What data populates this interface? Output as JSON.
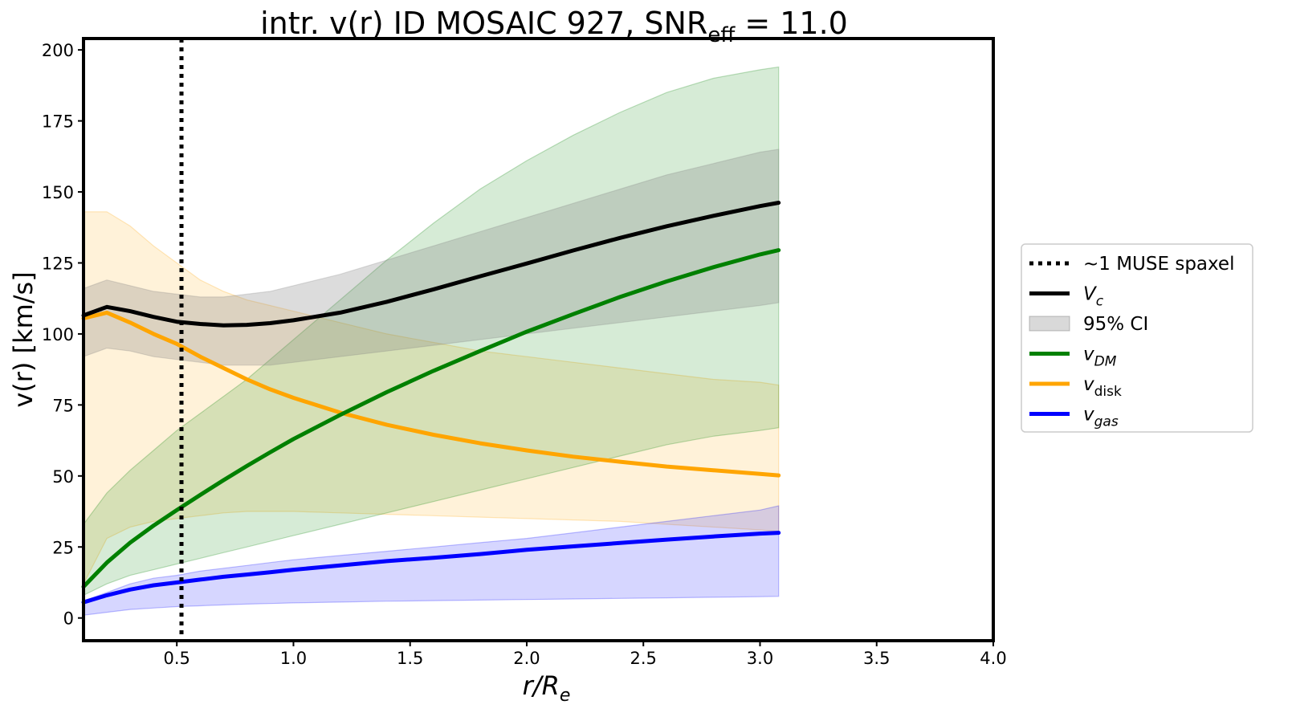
{
  "chart_data": {
    "type": "line",
    "title": {
      "prefix": "intr. v(r) ID MOSAIC 927, SNR",
      "sub": "eff",
      "suffix": " = 11.0"
    },
    "xlabel": {
      "main": "r/R",
      "sub": "e"
    },
    "ylabel": "v(r) [km/s]",
    "xlim": [
      0.1,
      4.0
    ],
    "ylim": [
      -8,
      204
    ],
    "xticks": [
      0.5,
      1.0,
      1.5,
      2.0,
      2.5,
      3.0,
      3.5,
      4.0
    ],
    "xtick_labels": [
      "0.5",
      "1.0",
      "1.5",
      "2.0",
      "2.5",
      "3.0",
      "3.5",
      "4.0"
    ],
    "yticks": [
      0,
      25,
      50,
      75,
      100,
      125,
      150,
      175,
      200
    ],
    "ytick_labels": [
      "0",
      "25",
      "50",
      "75",
      "100",
      "125",
      "150",
      "175",
      "200"
    ],
    "vline": {
      "x": 0.52,
      "label": "~1 MUSE spaxel",
      "color": "#000000"
    },
    "x": [
      0.1,
      0.2,
      0.3,
      0.4,
      0.5,
      0.6,
      0.7,
      0.8,
      0.9,
      1.0,
      1.2,
      1.4,
      1.6,
      1.8,
      2.0,
      2.2,
      2.4,
      2.6,
      2.8,
      3.0,
      3.08
    ],
    "bands": [
      {
        "name": "disk-band",
        "color": "#ffa500",
        "opacity": 0.15,
        "lower": [
          12,
          28,
          32,
          34,
          35,
          36,
          37,
          37.5,
          37.5,
          37.5,
          37,
          36.5,
          36,
          35.5,
          35,
          34.5,
          34,
          33,
          32,
          31,
          30.5
        ],
        "upper": [
          143,
          143,
          138,
          131,
          125,
          119,
          115,
          112,
          110,
          108,
          104,
          100,
          97,
          94,
          92,
          90,
          88,
          86,
          84,
          83,
          82
        ]
      },
      {
        "name": "dm-band",
        "color": "#008000",
        "opacity": 0.16,
        "lower": [
          8,
          12,
          15,
          17,
          19,
          21,
          23,
          25,
          27,
          29,
          33,
          37,
          41,
          45,
          49,
          53,
          57,
          61,
          64,
          66,
          67
        ],
        "upper": [
          33,
          44,
          52,
          59,
          66,
          72,
          78,
          84,
          91,
          98,
          112,
          126,
          139,
          151,
          161,
          170,
          178,
          185,
          190,
          193,
          194
        ]
      },
      {
        "name": "vc-band",
        "color": "#808080",
        "opacity": 0.28,
        "lower": [
          92,
          95,
          94,
          92,
          91,
          90,
          89,
          89,
          89,
          90,
          92,
          94,
          96,
          98,
          100,
          102,
          104,
          106,
          108,
          110,
          111
        ],
        "upper": [
          116,
          119,
          117,
          115,
          114,
          113,
          113,
          114,
          115,
          117,
          121,
          126,
          131,
          136,
          141,
          146,
          151,
          156,
          160,
          164,
          165
        ]
      },
      {
        "name": "gas-band",
        "color": "#0000ff",
        "opacity": 0.16,
        "lower": [
          1,
          2,
          3,
          3.5,
          4,
          4.3,
          4.6,
          4.9,
          5.1,
          5.3,
          5.6,
          5.9,
          6.1,
          6.3,
          6.5,
          6.7,
          6.9,
          7.1,
          7.3,
          7.5,
          7.6
        ],
        "upper": [
          6,
          9,
          12,
          14,
          15,
          16.5,
          17.5,
          18.5,
          19.5,
          20.5,
          22,
          23.5,
          25,
          26.5,
          28,
          30,
          32,
          34,
          36,
          38,
          39.5
        ]
      }
    ],
    "series": [
      {
        "name": "v_c",
        "label": "V",
        "label_sub": "c",
        "color": "#000000",
        "values": [
          106.5,
          109.5,
          108,
          106,
          104.3,
          103.5,
          103,
          103.2,
          103.8,
          104.8,
          107.5,
          111.3,
          115.7,
          120.3,
          124.8,
          129.4,
          133.8,
          137.9,
          141.6,
          145.0,
          146.2
        ]
      },
      {
        "name": "v_dm",
        "label": "v",
        "label_sub": "DM",
        "color": "#008000",
        "values": [
          11,
          19.5,
          26.5,
          32.5,
          38,
          43.3,
          48.5,
          53.5,
          58.3,
          63,
          71.5,
          79.5,
          87,
          94,
          100.8,
          107,
          113,
          118.5,
          123.5,
          128,
          129.5
        ]
      },
      {
        "name": "v_disk",
        "label": "v",
        "label_sub": "disk",
        "color": "#ffa500",
        "values": [
          105.5,
          107.5,
          104,
          100,
          96.5,
          92,
          88,
          84,
          80.5,
          77.5,
          72.3,
          68,
          64.5,
          61.5,
          59,
          56.8,
          55,
          53.3,
          52,
          50.7,
          50.2
        ]
      },
      {
        "name": "v_gas",
        "label": "v",
        "label_sub": "gas",
        "color": "#0000ff",
        "values": [
          5.5,
          8,
          10,
          11.5,
          12.5,
          13.5,
          14.5,
          15.3,
          16.1,
          17,
          18.5,
          20,
          21.2,
          22.5,
          24,
          25.2,
          26.4,
          27.6,
          28.7,
          29.7,
          30
        ]
      }
    ],
    "legend": {
      "position": "center-right-outside",
      "entries": [
        {
          "kind": "vline",
          "text": "~1 MUSE spaxel",
          "sub": ""
        },
        {
          "kind": "line",
          "series": "v_c",
          "text": "V",
          "sub": "c",
          "italic": true
        },
        {
          "kind": "patch",
          "band": "vc-band",
          "text": "95% CI",
          "sub": ""
        },
        {
          "kind": "line",
          "series": "v_dm",
          "text": "v",
          "sub": "DM",
          "italic": true
        },
        {
          "kind": "line",
          "series": "v_disk",
          "text": "v",
          "sub": "disk",
          "italic": true
        },
        {
          "kind": "line",
          "series": "v_gas",
          "text": "v",
          "sub": "gas",
          "italic": true
        }
      ]
    }
  }
}
